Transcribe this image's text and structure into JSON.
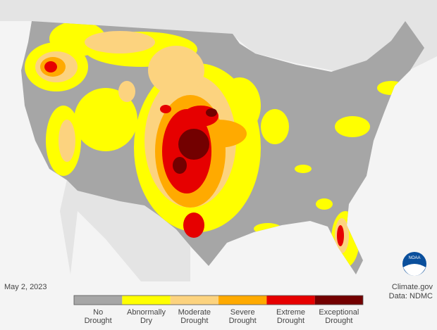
{
  "date": "May 2, 2023",
  "source": "Climate.gov",
  "data_credit": "Data: NDMC",
  "logo_text": "NOAA",
  "legend": [
    {
      "lines": [
        "No",
        "Drought"
      ],
      "color": "#a6a6a6"
    },
    {
      "lines": [
        "Abnormally",
        "Dry"
      ],
      "color": "#ffff00"
    },
    {
      "lines": [
        "Moderate",
        "Drought"
      ],
      "color": "#fcd37f"
    },
    {
      "lines": [
        "Severe",
        "Drought"
      ],
      "color": "#ffaa00"
    },
    {
      "lines": [
        "Extreme",
        "Drought"
      ],
      "color": "#e60000"
    },
    {
      "lines": [
        "Exceptional",
        "Drought"
      ],
      "color": "#730000"
    }
  ]
}
